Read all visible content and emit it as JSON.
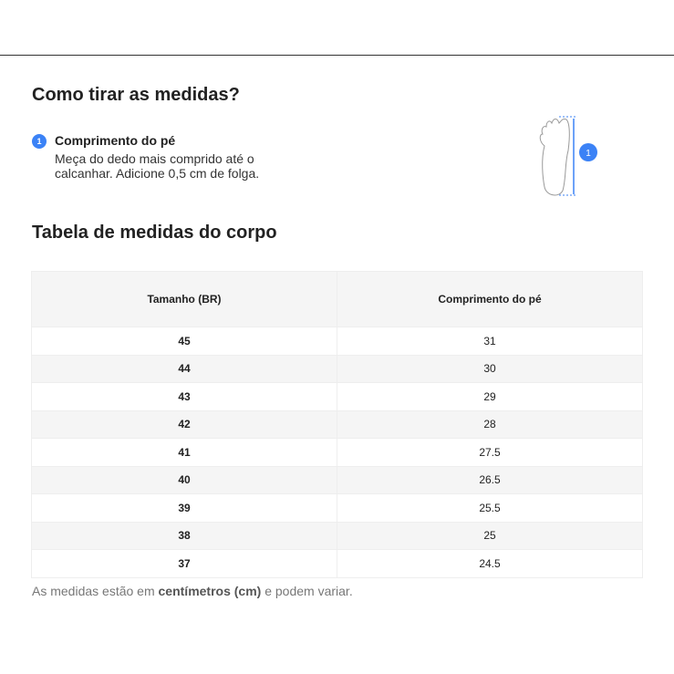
{
  "heading_measure": "Como tirar as medidas?",
  "step": {
    "number": "1",
    "title": "Comprimento do pé",
    "description": "Meça do dedo mais comprido até o calcanhar. Adicione 0,5 cm de folga."
  },
  "illustration": {
    "badge": "1"
  },
  "heading_table": "Tabela de medidas do corpo",
  "table": {
    "headers": [
      "Tamanho (BR)",
      "Comprimento do pé"
    ],
    "rows": [
      [
        "45",
        "31"
      ],
      [
        "44",
        "30"
      ],
      [
        "43",
        "29"
      ],
      [
        "42",
        "28"
      ],
      [
        "41",
        "27.5"
      ],
      [
        "40",
        "26.5"
      ],
      [
        "39",
        "25.5"
      ],
      [
        "38",
        "25"
      ],
      [
        "37",
        "24.5"
      ]
    ]
  },
  "note": {
    "before": "As medidas estão em ",
    "bold": "centímetros (cm)",
    "after": " e podem variar."
  },
  "colors": {
    "accent": "#3b82f6"
  }
}
